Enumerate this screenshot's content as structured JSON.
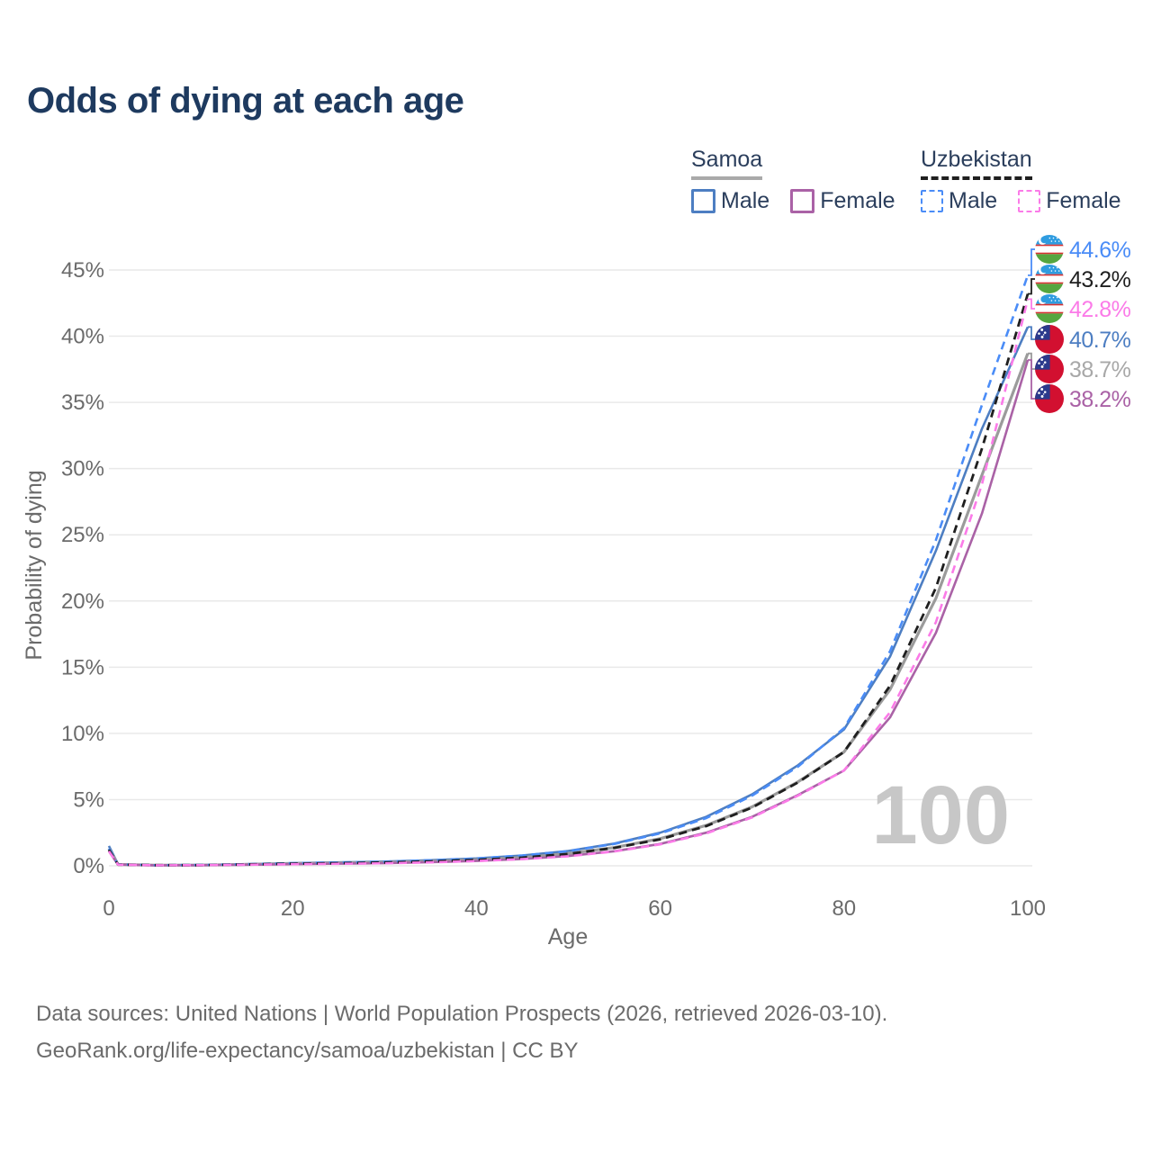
{
  "title": "Odds of dying at each age",
  "legend": {
    "samoa": {
      "label": "Samoa",
      "male": "Male",
      "female": "Female"
    },
    "uzbekistan": {
      "label": "Uzbekistan",
      "male": "Male",
      "female": "Female"
    }
  },
  "watermark": "100",
  "footer": {
    "line1": "Data sources: United Nations | World Population Prospects (2026, retrieved 2026-03-10).",
    "line2": "GeoRank.org/life-expectancy/samoa/uzbekistan | CC BY"
  },
  "colors": {
    "samoa_male": "#4d7ec2",
    "samoa_both": "#9b9b9b",
    "samoa_female": "#aa62a6",
    "uzbekistan_male": "#4a8cf7",
    "uzbekistan_both": "#1f1f1f",
    "uzbekistan_female": "#fb7be8",
    "title_text": "#1e3a5f",
    "legend_text": "#2b3e5c",
    "axis_text": "#6b6b6b",
    "gridline": "#e9e9e9",
    "watermark": "#c7c7c7",
    "end_label_gray": "#a8a8a8"
  },
  "flag_colors": {
    "uzbekistan": {
      "blue": "#2f9ce0",
      "white": "#ffffff",
      "green": "#55a63f",
      "red": "#d63131"
    },
    "samoa": {
      "red": "#d21030",
      "blue": "#2b3a8c",
      "star": "#ffffff"
    }
  },
  "chart_data": {
    "type": "line",
    "title": "Odds of dying at each age",
    "xlabel": "Age",
    "ylabel": "Probability of dying",
    "xlim": [
      0,
      100
    ],
    "ylim": [
      0,
      47
    ],
    "grid": "horizontal",
    "legend_position": "top-right",
    "x_ticks": [
      0,
      20,
      40,
      60,
      80,
      100
    ],
    "y_ticks": [
      {
        "v": 0,
        "label": "0%"
      },
      {
        "v": 5,
        "label": "5%"
      },
      {
        "v": 10,
        "label": "10%"
      },
      {
        "v": 15,
        "label": "15%"
      },
      {
        "v": 20,
        "label": "20%"
      },
      {
        "v": 25,
        "label": "25%"
      },
      {
        "v": 30,
        "label": "30%"
      },
      {
        "v": 35,
        "label": "35%"
      },
      {
        "v": 40,
        "label": "40%"
      },
      {
        "v": 45,
        "label": "45%"
      }
    ],
    "x": [
      0,
      1,
      5,
      10,
      15,
      20,
      25,
      30,
      35,
      40,
      45,
      50,
      55,
      60,
      65,
      70,
      75,
      80,
      85,
      90,
      95,
      100
    ],
    "series": [
      {
        "id": "samoa_male",
        "name": "Samoa Male",
        "style": "solid",
        "color_key": "samoa_male",
        "width": 2.6,
        "values": [
          1.5,
          0.11,
          0.05,
          0.06,
          0.12,
          0.2,
          0.26,
          0.32,
          0.42,
          0.56,
          0.78,
          1.12,
          1.68,
          2.5,
          3.7,
          5.4,
          7.6,
          10.3,
          15.8,
          23.8,
          33.0,
          40.7
        ]
      },
      {
        "id": "samoa_both",
        "name": "Samoa Both sexes",
        "style": "solid",
        "color_key": "samoa_both",
        "width": 3.2,
        "values": [
          1.3,
          0.1,
          0.05,
          0.05,
          0.1,
          0.16,
          0.21,
          0.26,
          0.34,
          0.46,
          0.63,
          0.92,
          1.38,
          2.05,
          3.05,
          4.45,
          6.35,
          8.6,
          13.3,
          20.2,
          29.5,
          38.7
        ]
      },
      {
        "id": "samoa_female",
        "name": "Samoa Female",
        "style": "solid",
        "color_key": "samoa_female",
        "width": 2.6,
        "values": [
          1.1,
          0.09,
          0.04,
          0.05,
          0.08,
          0.12,
          0.16,
          0.2,
          0.27,
          0.37,
          0.51,
          0.74,
          1.1,
          1.65,
          2.5,
          3.7,
          5.35,
          7.2,
          11.2,
          17.6,
          26.6,
          38.2
        ]
      },
      {
        "id": "uzbekistan_male",
        "name": "Uzbekistan Male",
        "style": "dashed",
        "color_key": "uzbekistan_male",
        "width": 2.6,
        "values": [
          1.3,
          0.1,
          0.05,
          0.06,
          0.12,
          0.2,
          0.25,
          0.31,
          0.42,
          0.55,
          0.78,
          1.1,
          1.65,
          2.45,
          3.6,
          5.3,
          7.5,
          10.4,
          16.2,
          24.6,
          34.8,
          44.6
        ]
      },
      {
        "id": "uzbekistan_both",
        "name": "Uzbekistan Both sexes",
        "style": "dashed",
        "color_key": "uzbekistan_both",
        "width": 2.8,
        "values": [
          1.2,
          0.09,
          0.05,
          0.05,
          0.1,
          0.16,
          0.2,
          0.25,
          0.33,
          0.45,
          0.62,
          0.9,
          1.35,
          2.0,
          3.0,
          4.4,
          6.3,
          8.6,
          13.6,
          21.0,
          31.5,
          43.2
        ]
      },
      {
        "id": "uzbekistan_female",
        "name": "Uzbekistan Female",
        "style": "dashed",
        "color_key": "uzbekistan_female",
        "width": 2.6,
        "values": [
          1.1,
          0.08,
          0.04,
          0.05,
          0.08,
          0.12,
          0.15,
          0.19,
          0.26,
          0.36,
          0.5,
          0.72,
          1.08,
          1.62,
          2.45,
          3.65,
          5.3,
          7.2,
          11.6,
          18.4,
          28.8,
          42.8
        ]
      }
    ]
  },
  "end_labels": [
    {
      "series": "uzbekistan_male",
      "value": "44.6%",
      "flag": "uzbekistan",
      "color_key": "uzbekistan_male"
    },
    {
      "series": "uzbekistan_both",
      "value": "43.2%",
      "flag": "uzbekistan",
      "color_key": "uzbekistan_both"
    },
    {
      "series": "uzbekistan_female",
      "value": "42.8%",
      "flag": "uzbekistan",
      "color_key": "uzbekistan_female"
    },
    {
      "series": "samoa_male",
      "value": "40.7%",
      "flag": "samoa",
      "color_key": "samoa_male"
    },
    {
      "series": "samoa_both",
      "value": "38.7%",
      "flag": "samoa",
      "color_key": "end_label_gray"
    },
    {
      "series": "samoa_female",
      "value": "38.2%",
      "flag": "samoa",
      "color_key": "samoa_female"
    }
  ]
}
